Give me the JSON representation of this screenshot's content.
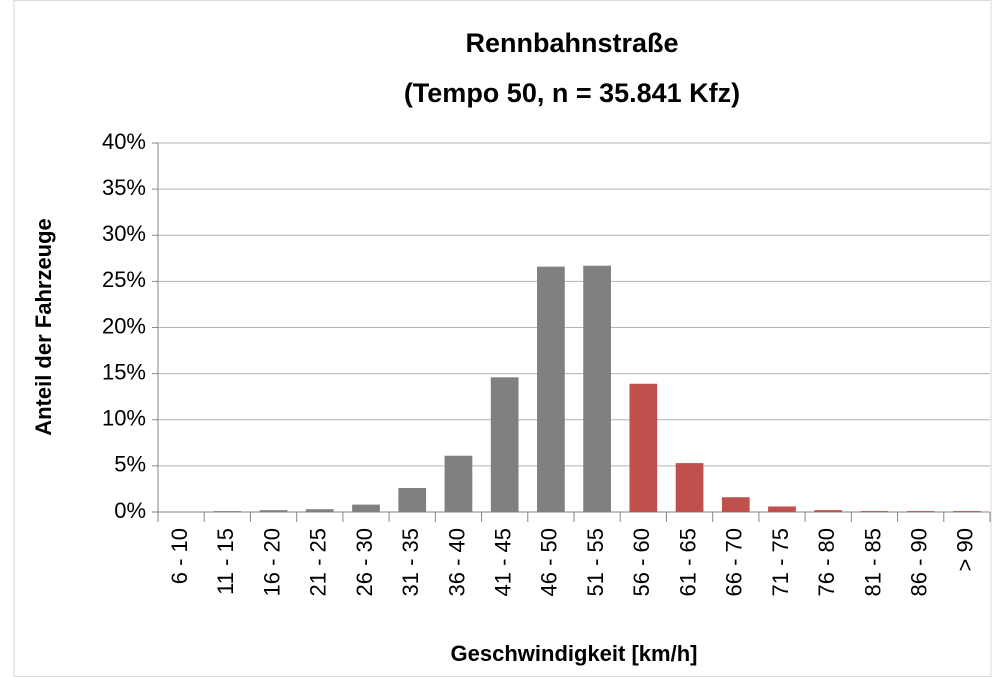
{
  "chart_data": {
    "type": "bar",
    "title": [
      "Rennbahnstraße",
      "(Tempo 50, n = 35.841 Kfz)"
    ],
    "xlabel": "Geschwindigkeit [km/h]",
    "ylabel": "Anteil der Fahrzeuge",
    "categories": [
      "6 - 10",
      "11 - 15",
      "16 - 20",
      "21 - 25",
      "26 - 30",
      "31 - 35",
      "36 - 40",
      "41 - 45",
      "46 - 50",
      "51 - 55",
      "56 - 60",
      "61 - 65",
      "66 - 70",
      "71 - 75",
      "76 - 80",
      "81 - 85",
      "86 - 90",
      "> 90"
    ],
    "values": [
      0,
      0.1,
      0.2,
      0.3,
      0.8,
      2.6,
      6.1,
      14.6,
      26.6,
      26.7,
      13.9,
      5.3,
      1.6,
      0.6,
      0.2,
      0.1,
      0.1,
      0.1
    ],
    "colors": [
      "#808080",
      "#808080",
      "#808080",
      "#808080",
      "#808080",
      "#808080",
      "#808080",
      "#808080",
      "#808080",
      "#808080",
      "#c0504d",
      "#c0504d",
      "#c0504d",
      "#c0504d",
      "#c0504d",
      "#c0504d",
      "#c0504d",
      "#c0504d"
    ],
    "ylim": [
      0,
      40
    ],
    "yticks": [
      {
        "value": 0,
        "label": "0%"
      },
      {
        "value": 5,
        "label": "5%"
      },
      {
        "value": 10,
        "label": "10%"
      },
      {
        "value": 15,
        "label": "15%"
      },
      {
        "value": 20,
        "label": "20%"
      },
      {
        "value": 25,
        "label": "25%"
      },
      {
        "value": 30,
        "label": "30%"
      },
      {
        "value": 35,
        "label": "35%"
      },
      {
        "value": 40,
        "label": "40%"
      }
    ],
    "grid": true
  }
}
